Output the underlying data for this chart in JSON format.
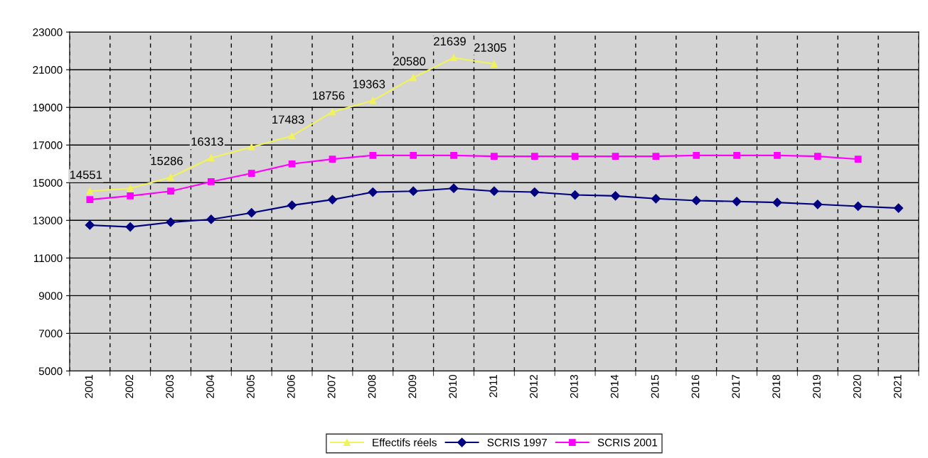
{
  "chart_data": {
    "type": "line",
    "categories": [
      "2001",
      "2002",
      "2003",
      "2004",
      "2005",
      "2006",
      "2007",
      "2008",
      "2009",
      "2010",
      "2011",
      "2012",
      "2013",
      "2014",
      "2015",
      "2016",
      "2017",
      "2018",
      "2019",
      "2020",
      "2021"
    ],
    "ylim": [
      5000,
      23000
    ],
    "yticks": [
      5000,
      7000,
      9000,
      11000,
      13000,
      15000,
      17000,
      19000,
      21000,
      23000
    ],
    "grid": true,
    "legend": "bottom",
    "series": [
      {
        "name": "Effectifs réels",
        "color": "#f2f25a",
        "marker": "triangle",
        "values": [
          14551,
          14700,
          15286,
          16313,
          16900,
          17483,
          18756,
          19363,
          20580,
          21639,
          21305,
          null,
          null,
          null,
          null,
          null,
          null,
          null,
          null,
          null,
          null
        ],
        "value_labels": [
          "14551",
          null,
          "15286",
          "16313",
          null,
          "17483",
          "18756",
          "19363",
          "20580",
          "21639",
          "21305",
          null,
          null,
          null,
          null,
          null,
          null,
          null,
          null,
          null,
          null
        ]
      },
      {
        "name": "SCRIS 1997",
        "color": "#000080",
        "marker": "diamond",
        "values": [
          12750,
          12650,
          12900,
          13050,
          13400,
          13800,
          14100,
          14500,
          14550,
          14700,
          14550,
          14500,
          14350,
          14300,
          14150,
          14050,
          14000,
          13950,
          13850,
          13750,
          13650
        ]
      },
      {
        "name": "SCRIS 2001",
        "color": "#ff00ff",
        "marker": "square",
        "values": [
          14100,
          14300,
          14550,
          15050,
          15500,
          16000,
          16250,
          16450,
          16450,
          16450,
          16400,
          16400,
          16400,
          16400,
          16400,
          16450,
          16450,
          16450,
          16400,
          16250,
          null
        ]
      }
    ]
  }
}
